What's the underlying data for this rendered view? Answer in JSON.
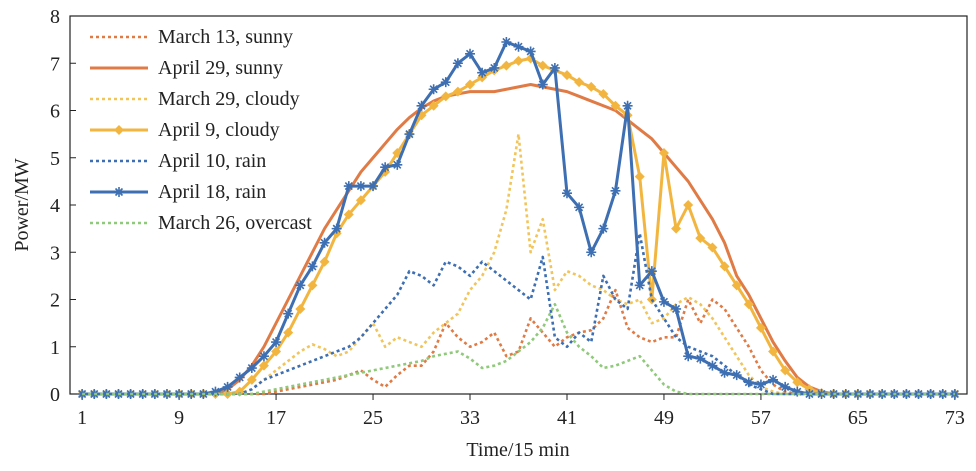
{
  "chart_data": {
    "type": "line",
    "x_label": "Time/15 min",
    "y_label": "Power/MW",
    "x": [
      1,
      2,
      3,
      4,
      5,
      6,
      7,
      8,
      9,
      10,
      11,
      12,
      13,
      14,
      15,
      16,
      17,
      18,
      19,
      20,
      21,
      22,
      23,
      24,
      25,
      26,
      27,
      28,
      29,
      30,
      31,
      32,
      33,
      34,
      35,
      36,
      37,
      38,
      39,
      40,
      41,
      42,
      43,
      44,
      45,
      46,
      47,
      48,
      49,
      50,
      51,
      52,
      53,
      54,
      55,
      56,
      57,
      58,
      59,
      60,
      61,
      62,
      63,
      64,
      65,
      66,
      67,
      68,
      69,
      70,
      71,
      72,
      73
    ],
    "xlim": [
      0,
      74
    ],
    "xticks": [
      1,
      9,
      17,
      25,
      33,
      41,
      49,
      57,
      65,
      73
    ],
    "ylim": [
      0,
      8
    ],
    "yticks": [
      0,
      1,
      2,
      3,
      4,
      5,
      6,
      7,
      8
    ],
    "series": [
      {
        "name": "March 13, sunny",
        "color": "#e07b45",
        "style": "dotted",
        "marker": null,
        "values": [
          0,
          0,
          0,
          0,
          0,
          0,
          0,
          0,
          0,
          0,
          0,
          0,
          0,
          0,
          0,
          0,
          0.05,
          0.1,
          0.15,
          0.2,
          0.25,
          0.3,
          0.4,
          0.5,
          0.3,
          0.15,
          0.4,
          0.6,
          0.6,
          0.9,
          1.5,
          1.2,
          1.0,
          1.1,
          1.3,
          0.8,
          0.9,
          1.6,
          1.3,
          1.0,
          1.2,
          1.3,
          1.35,
          1.6,
          2.2,
          1.4,
          1.2,
          1.1,
          1.2,
          1.2,
          2.0,
          1.5,
          2.0,
          1.8,
          1.4,
          1.0,
          0.5,
          0.2,
          0.05,
          0,
          0,
          0,
          0,
          0,
          0,
          0,
          0,
          0,
          0,
          0,
          0,
          0,
          0
        ]
      },
      {
        "name": "April 29, sunny",
        "color": "#e07b45",
        "style": "solid",
        "marker": null,
        "values": [
          0,
          0,
          0,
          0,
          0,
          0,
          0,
          0,
          0,
          0,
          0,
          0,
          0.1,
          0.3,
          0.6,
          1.0,
          1.5,
          2.0,
          2.5,
          3.0,
          3.5,
          3.9,
          4.3,
          4.7,
          5.0,
          5.3,
          5.6,
          5.85,
          6.05,
          6.2,
          6.3,
          6.35,
          6.4,
          6.4,
          6.4,
          6.45,
          6.5,
          6.55,
          6.5,
          6.45,
          6.4,
          6.3,
          6.2,
          6.1,
          6.0,
          5.8,
          5.6,
          5.4,
          5.1,
          4.8,
          4.5,
          4.1,
          3.7,
          3.2,
          2.5,
          2.1,
          1.6,
          1.1,
          0.7,
          0.35,
          0.15,
          0.05,
          0,
          0,
          0,
          0,
          0,
          0,
          0,
          0,
          0,
          0,
          0
        ]
      },
      {
        "name": "March 29, cloudy",
        "color": "#f2c55c",
        "style": "dotted",
        "marker": null,
        "values": [
          0,
          0,
          0,
          0,
          0,
          0,
          0,
          0,
          0,
          0,
          0,
          0,
          0,
          0,
          0.1,
          0.3,
          0.5,
          0.7,
          0.9,
          1.05,
          0.95,
          0.8,
          0.9,
          1.2,
          1.5,
          1.0,
          1.2,
          1.1,
          1.0,
          1.3,
          1.5,
          1.7,
          2.2,
          2.5,
          3.0,
          3.9,
          5.5,
          3.0,
          3.7,
          2.2,
          2.6,
          2.5,
          2.3,
          2.2,
          2.0,
          1.9,
          2.0,
          1.5,
          1.6,
          1.9,
          2.05,
          1.9,
          1.6,
          1.2,
          0.8,
          0.4,
          0.15,
          0.05,
          0,
          0,
          0,
          0,
          0,
          0,
          0,
          0,
          0,
          0,
          0,
          0,
          0,
          0,
          0
        ]
      },
      {
        "name": "April 9, cloudy",
        "color": "#f2b640",
        "style": "solid",
        "marker": "diamond",
        "values": [
          0,
          0,
          0,
          0,
          0,
          0,
          0,
          0,
          0,
          0,
          0,
          0,
          0,
          0.05,
          0.3,
          0.6,
          0.9,
          1.3,
          1.8,
          2.3,
          2.8,
          3.4,
          3.8,
          4.1,
          4.4,
          4.7,
          5.1,
          5.5,
          5.9,
          6.1,
          6.3,
          6.4,
          6.55,
          6.7,
          6.85,
          6.95,
          7.05,
          7.1,
          6.95,
          6.85,
          6.75,
          6.6,
          6.5,
          6.35,
          6.1,
          5.9,
          4.6,
          2.0,
          5.1,
          3.5,
          4.0,
          3.3,
          3.1,
          2.7,
          2.3,
          1.9,
          1.4,
          0.9,
          0.5,
          0.25,
          0.1,
          0.02,
          0,
          0,
          0,
          0,
          0,
          0,
          0,
          0,
          0,
          0,
          0
        ]
      },
      {
        "name": "April 10, rain",
        "color": "#3d6fb2",
        "style": "dotted",
        "marker": null,
        "values": [
          0,
          0,
          0,
          0,
          0,
          0,
          0,
          0,
          0,
          0,
          0,
          0,
          0,
          0,
          0.1,
          0.3,
          0.4,
          0.5,
          0.6,
          0.7,
          0.8,
          0.9,
          1.0,
          1.2,
          1.5,
          1.8,
          2.1,
          2.6,
          2.5,
          2.3,
          2.8,
          2.7,
          2.5,
          2.8,
          2.6,
          2.4,
          2.2,
          2.0,
          2.9,
          1.2,
          1.0,
          1.3,
          1.1,
          2.5,
          2.0,
          1.8,
          3.4,
          2.0,
          1.6,
          1.2,
          1.0,
          0.9,
          0.8,
          0.6,
          0.4,
          0.2,
          0.1,
          0,
          0,
          0,
          0,
          0,
          0,
          0,
          0,
          0,
          0,
          0,
          0,
          0,
          0,
          0,
          0
        ]
      },
      {
        "name": "April 18, rain",
        "color": "#3d6fb2",
        "style": "solid",
        "marker": "star",
        "values": [
          0,
          0,
          0,
          0,
          0,
          0,
          0,
          0,
          0,
          0,
          0,
          0.05,
          0.15,
          0.35,
          0.55,
          0.8,
          1.1,
          1.7,
          2.3,
          2.7,
          3.2,
          3.5,
          4.4,
          4.4,
          4.4,
          4.8,
          4.85,
          5.5,
          6.1,
          6.45,
          6.6,
          7.0,
          7.2,
          6.8,
          6.9,
          7.45,
          7.35,
          7.25,
          6.55,
          6.9,
          4.25,
          3.95,
          3.0,
          3.5,
          4.3,
          6.1,
          2.3,
          2.6,
          1.95,
          1.8,
          0.8,
          0.75,
          0.6,
          0.45,
          0.4,
          0.25,
          0.2,
          0.3,
          0.15,
          0.05,
          0,
          0,
          0,
          0,
          0,
          0,
          0,
          0,
          0,
          0,
          0,
          0,
          0
        ]
      },
      {
        "name": "March 26, overcast",
        "color": "#8fc97a",
        "style": "dotted",
        "marker": null,
        "values": [
          0,
          0,
          0,
          0,
          0,
          0,
          0,
          0,
          0,
          0,
          0,
          0,
          0,
          0,
          0,
          0.05,
          0.1,
          0.15,
          0.2,
          0.25,
          0.3,
          0.35,
          0.4,
          0.45,
          0.5,
          0.55,
          0.6,
          0.65,
          0.7,
          0.8,
          0.85,
          0.9,
          0.75,
          0.55,
          0.6,
          0.7,
          0.9,
          1.1,
          1.4,
          1.9,
          1.3,
          1.0,
          0.8,
          0.55,
          0.6,
          0.7,
          0.8,
          0.5,
          0.2,
          0.05,
          0,
          0,
          0,
          0,
          0,
          0,
          0,
          0,
          0,
          0,
          0,
          0,
          0,
          0,
          0,
          0,
          0,
          0,
          0,
          0,
          0,
          0,
          0
        ]
      }
    ]
  }
}
